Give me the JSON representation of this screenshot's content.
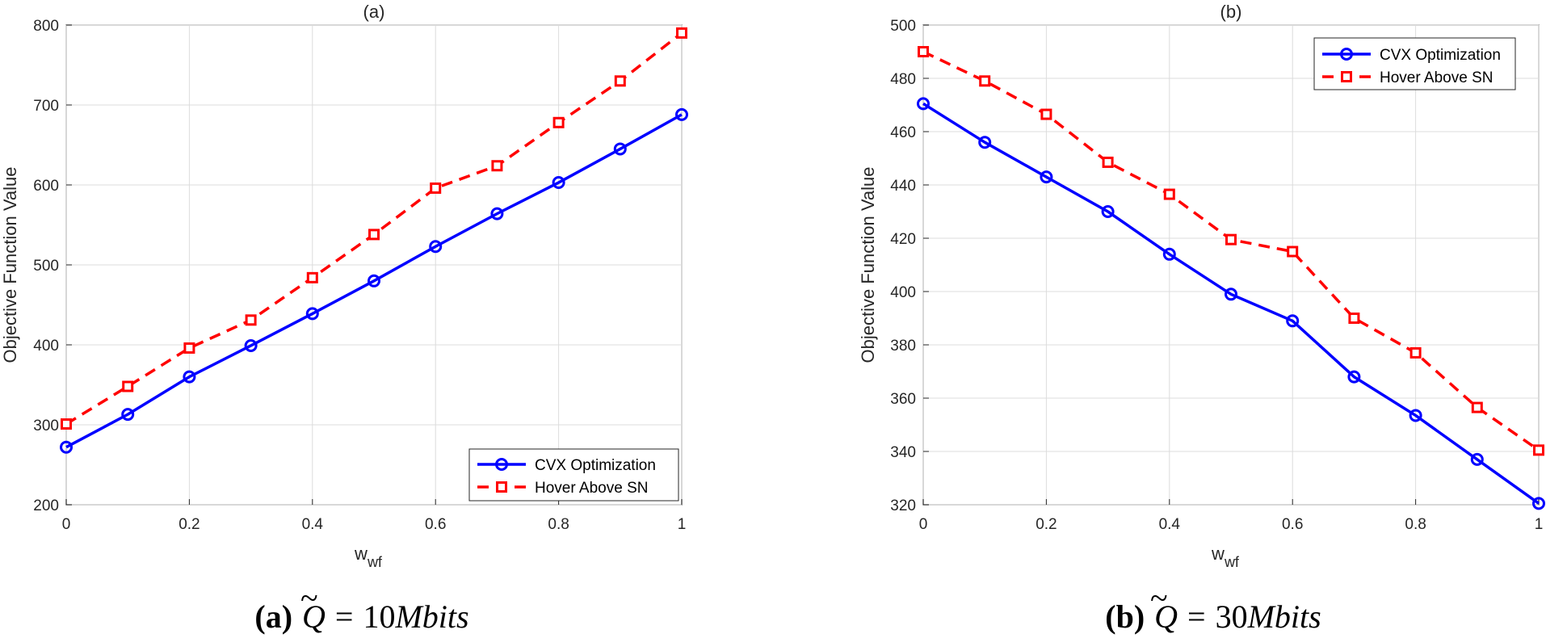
{
  "chart_data": [
    {
      "type": "line",
      "title": "(a)",
      "xlabel": "w",
      "xlabel_sub": "wf",
      "ylabel": "Objective Function Value",
      "xlim": [
        0,
        1
      ],
      "ylim": [
        200,
        800
      ],
      "xticks": [
        "0",
        "0.2",
        "0.4",
        "0.6",
        "0.8",
        "1"
      ],
      "yticks": [
        "200",
        "300",
        "400",
        "500",
        "600",
        "700",
        "800"
      ],
      "x": [
        0,
        0.1,
        0.2,
        0.3,
        0.4,
        0.5,
        0.6,
        0.7,
        0.8,
        0.9,
        1.0
      ],
      "series": [
        {
          "name": "CVX Optimization",
          "color": "#0000ff",
          "style": "solid",
          "marker": "circle",
          "values": [
            272,
            313,
            360,
            399,
            439,
            480,
            523,
            564,
            603,
            645,
            688
          ]
        },
        {
          "name": "Hover Above SN",
          "color": "#ff0000",
          "style": "dashed",
          "marker": "square",
          "values": [
            301,
            348,
            396,
            431,
            484,
            538,
            596,
            624,
            678,
            730,
            790
          ]
        }
      ],
      "legend_position": "bottom-right",
      "caption": {
        "label": "(a)",
        "math_symbol": "Q",
        "equals": "=",
        "value": "10",
        "unit": "Mbits"
      }
    },
    {
      "type": "line",
      "title": "(b)",
      "xlabel": "w",
      "xlabel_sub": "wf",
      "ylabel": "Objective Function Value",
      "xlim": [
        0,
        1
      ],
      "ylim": [
        320,
        500
      ],
      "xticks": [
        "0",
        "0.2",
        "0.4",
        "0.6",
        "0.8",
        "1"
      ],
      "yticks": [
        "320",
        "340",
        "360",
        "380",
        "400",
        "420",
        "440",
        "460",
        "480",
        "500"
      ],
      "x": [
        0,
        0.1,
        0.2,
        0.3,
        0.4,
        0.5,
        0.6,
        0.7,
        0.8,
        0.9,
        1.0
      ],
      "series": [
        {
          "name": "CVX Optimization",
          "color": "#0000ff",
          "style": "solid",
          "marker": "circle",
          "values": [
            470.5,
            456,
            443,
            430,
            414,
            399,
            389,
            368,
            353.5,
            337,
            320.5
          ]
        },
        {
          "name": "Hover Above SN",
          "color": "#ff0000",
          "style": "dashed",
          "marker": "square",
          "values": [
            490,
            479,
            466.5,
            448.5,
            436.5,
            419.5,
            415,
            390,
            377,
            356.5,
            340.5
          ]
        }
      ],
      "legend_position": "top-right",
      "caption": {
        "label": "(b)",
        "math_symbol": "Q",
        "equals": "=",
        "value": "30",
        "unit": "Mbits"
      }
    }
  ]
}
